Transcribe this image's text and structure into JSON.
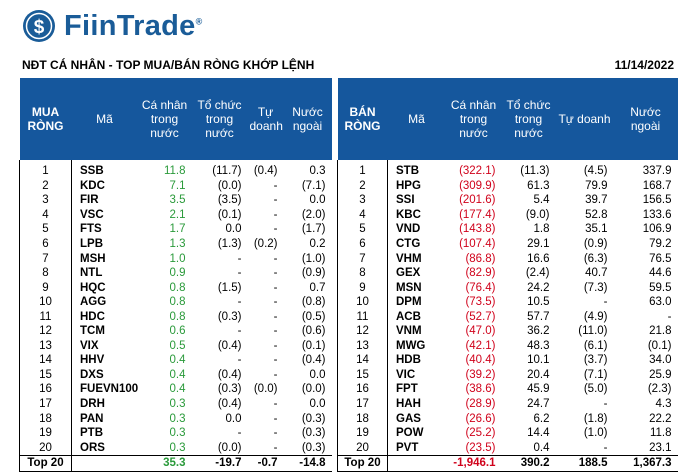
{
  "brand": {
    "name": "FiinTrade",
    "reg": "®",
    "color": "#1a5c98"
  },
  "subtitle": "NĐT CÁ NHÂN - TOP MUA/BÁN RÒNG KHỚP LỆNH",
  "date": "11/14/2022",
  "chart_data": {
    "type": "table",
    "tables": [
      {
        "name": "buy",
        "headers": [
          "MUA RÒNG",
          "Mã",
          "Cá nhân trong nước",
          "Tổ chức trong nước",
          "Tự doanh",
          "Nước ngoài"
        ],
        "rows": [
          [
            "1",
            "SSB",
            "11.8",
            "(11.7)",
            "(0.4)",
            "0.3"
          ],
          [
            "2",
            "KDC",
            "7.1",
            "(0.0)",
            "-",
            "(7.1)"
          ],
          [
            "3",
            "FIR",
            "3.5",
            "(3.5)",
            "-",
            "0.0"
          ],
          [
            "4",
            "VSC",
            "2.1",
            "(0.1)",
            "-",
            "(2.0)"
          ],
          [
            "5",
            "FTS",
            "1.7",
            "0.0",
            "-",
            "(1.7)"
          ],
          [
            "6",
            "LPB",
            "1.3",
            "(1.3)",
            "(0.2)",
            "0.2"
          ],
          [
            "7",
            "MSH",
            "1.0",
            "-",
            "-",
            "(1.0)"
          ],
          [
            "8",
            "NTL",
            "0.9",
            "-",
            "-",
            "(0.9)"
          ],
          [
            "9",
            "HQC",
            "0.8",
            "(1.5)",
            "-",
            "0.7"
          ],
          [
            "10",
            "AGG",
            "0.8",
            "-",
            "-",
            "(0.8)"
          ],
          [
            "11",
            "HDC",
            "0.8",
            "(0.3)",
            "-",
            "(0.5)"
          ],
          [
            "12",
            "TCM",
            "0.6",
            "-",
            "-",
            "(0.6)"
          ],
          [
            "13",
            "VIX",
            "0.5",
            "(0.4)",
            "-",
            "(0.1)"
          ],
          [
            "14",
            "HHV",
            "0.4",
            "-",
            "-",
            "(0.4)"
          ],
          [
            "15",
            "DXS",
            "0.4",
            "(0.4)",
            "-",
            "0.0"
          ],
          [
            "16",
            "FUEVN100",
            "0.4",
            "(0.3)",
            "(0.0)",
            "(0.0)"
          ],
          [
            "17",
            "DRH",
            "0.3",
            "(0.4)",
            "-",
            "0.0"
          ],
          [
            "18",
            "PAN",
            "0.3",
            "0.0",
            "-",
            "(0.3)"
          ],
          [
            "19",
            "PTB",
            "0.3",
            "-",
            "-",
            "(0.3)"
          ],
          [
            "20",
            "ORS",
            "0.3",
            "(0.0)",
            "-",
            "(0.3)"
          ]
        ],
        "total": [
          "Top 20",
          "",
          "35.3",
          "-19.7",
          "-0.7",
          "-14.8"
        ]
      },
      {
        "name": "sell",
        "headers": [
          "BÁN RÒNG",
          "Mã",
          "Cá nhân trong nước",
          "Tổ chức trong nước",
          "Tự doanh",
          "Nước ngoài"
        ],
        "rows": [
          [
            "1",
            "STB",
            "(322.1)",
            "(11.3)",
            "(4.5)",
            "337.9"
          ],
          [
            "2",
            "HPG",
            "(309.9)",
            "61.3",
            "79.9",
            "168.7"
          ],
          [
            "3",
            "SSI",
            "(201.6)",
            "5.4",
            "39.7",
            "156.5"
          ],
          [
            "4",
            "KBC",
            "(177.4)",
            "(9.0)",
            "52.8",
            "133.6"
          ],
          [
            "5",
            "VND",
            "(143.8)",
            "1.8",
            "35.1",
            "106.9"
          ],
          [
            "6",
            "CTG",
            "(107.4)",
            "29.1",
            "(0.9)",
            "79.2"
          ],
          [
            "7",
            "VHM",
            "(86.8)",
            "16.6",
            "(6.3)",
            "76.5"
          ],
          [
            "8",
            "GEX",
            "(82.9)",
            "(2.4)",
            "40.7",
            "44.6"
          ],
          [
            "9",
            "MSN",
            "(76.4)",
            "24.2",
            "(7.3)",
            "59.5"
          ],
          [
            "10",
            "DPM",
            "(73.5)",
            "10.5",
            "-",
            "63.0"
          ],
          [
            "11",
            "ACB",
            "(52.7)",
            "57.7",
            "(4.9)",
            "-"
          ],
          [
            "12",
            "VNM",
            "(47.0)",
            "36.2",
            "(11.0)",
            "21.8"
          ],
          [
            "13",
            "MWG",
            "(42.1)",
            "48.3",
            "(6.1)",
            "(0.1)"
          ],
          [
            "14",
            "HDB",
            "(40.4)",
            "10.1",
            "(3.7)",
            "34.0"
          ],
          [
            "15",
            "VIC",
            "(39.2)",
            "20.4",
            "(7.1)",
            "25.9"
          ],
          [
            "16",
            "FPT",
            "(38.6)",
            "45.9",
            "(5.0)",
            "(2.3)"
          ],
          [
            "17",
            "HAH",
            "(28.9)",
            "24.7",
            "-",
            "4.3"
          ],
          [
            "18",
            "GAS",
            "(26.6)",
            "6.2",
            "(1.8)",
            "22.2"
          ],
          [
            "19",
            "POW",
            "(25.2)",
            "14.4",
            "(1.0)",
            "11.8"
          ],
          [
            "20",
            "PVT",
            "(23.5)",
            "0.4",
            "-",
            "23.1"
          ]
        ],
        "total": [
          "Top 20",
          "",
          "-1,946.1",
          "390.2",
          "188.5",
          "1,367.3"
        ]
      }
    ]
  },
  "colors": {
    "header_bg": "#15579d",
    "buy": "#2a9a3a",
    "sell": "#d0021b"
  }
}
